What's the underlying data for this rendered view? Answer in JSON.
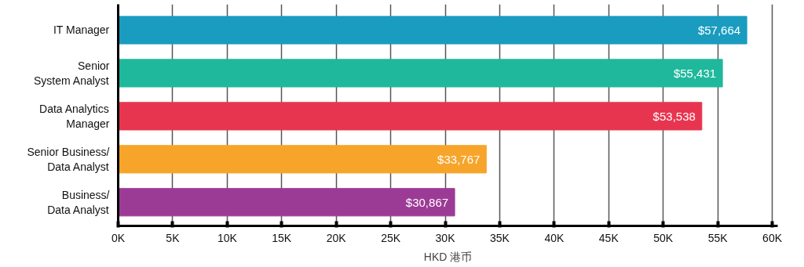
{
  "chart_data": {
    "type": "bar",
    "orientation": "horizontal",
    "xlabel": "HKD 港币",
    "categories": [
      "IT Manager",
      "Senior\nSystem Analyst",
      "Data Analytics\nManager",
      "Senior Business/\nData Analyst",
      "Business/\nData Analyst"
    ],
    "values": [
      57664,
      55431,
      53538,
      33767,
      30867
    ],
    "colors": [
      "#1a9cc0",
      "#20b89c",
      "#e8354f",
      "#f7a52a",
      "#9c3b96"
    ],
    "value_labels": [
      "$57,664",
      "$55,431",
      "$53,538",
      "$33,767",
      "$30,867"
    ],
    "xlim": [
      0,
      60500
    ],
    "xticks": [
      {
        "value": 0,
        "label": "0K"
      },
      {
        "value": 5000,
        "label": "5K"
      },
      {
        "value": 10000,
        "label": "10K"
      },
      {
        "value": 15000,
        "label": "15K"
      },
      {
        "value": 20000,
        "label": "20K"
      },
      {
        "value": 25000,
        "label": "25K"
      },
      {
        "value": 30000,
        "label": "30K"
      },
      {
        "value": 35000,
        "label": "35K"
      },
      {
        "value": 40000,
        "label": "40K"
      },
      {
        "value": 45000,
        "label": "45K"
      },
      {
        "value": 50000,
        "label": "50K"
      },
      {
        "value": 55000,
        "label": "55K"
      },
      {
        "value": 60000,
        "label": "60K"
      }
    ],
    "grid": "x"
  }
}
